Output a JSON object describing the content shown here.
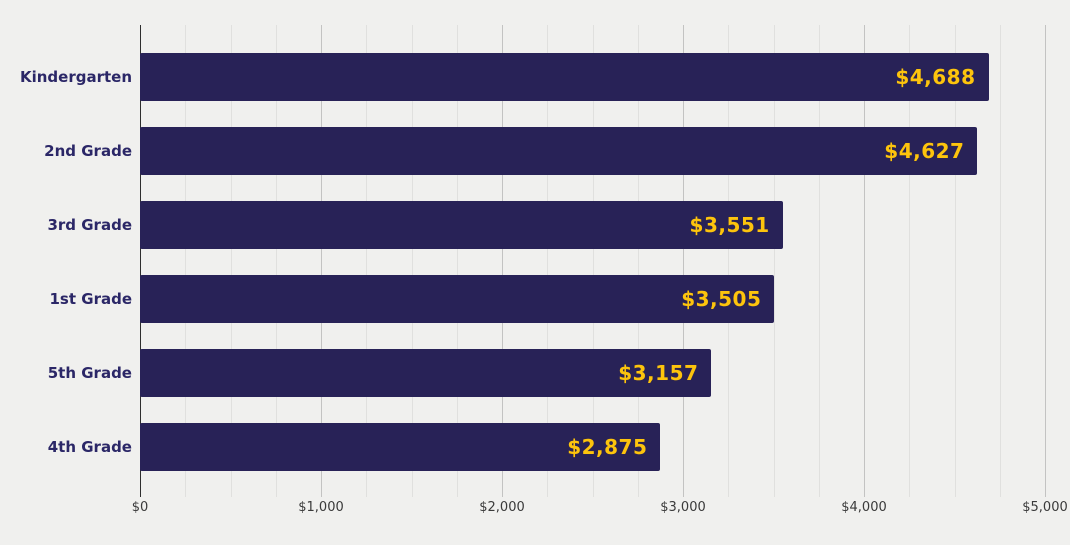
{
  "chart_data": {
    "type": "bar",
    "orientation": "horizontal",
    "title": "",
    "categories": [
      "Kindergarten",
      "2nd Grade",
      "3rd Grade",
      "1st Grade",
      "5th Grade",
      "4th Grade"
    ],
    "values": [
      4688,
      4627,
      3551,
      3505,
      3157,
      2875
    ],
    "value_labels": [
      "$4,688",
      "$4,627",
      "$3,551",
      "$3,505",
      "$3,157",
      "$2,875"
    ],
    "xlabel": "",
    "ylabel": "",
    "xlim": [
      0,
      5000
    ],
    "x_major_ticks": [
      0,
      1000,
      2000,
      3000,
      4000,
      5000
    ],
    "x_major_tick_labels": [
      "$0",
      "$1,000",
      "$2,000",
      "$3,000",
      "$4,000",
      "$5,000"
    ],
    "x_minor_tick_interval": 250,
    "grid": true,
    "legend": false,
    "colors": {
      "background": "#f0f0ee",
      "bar": "#282257",
      "value_label": "#fdc40d",
      "category_label": "#2b2767",
      "axis_line": "#2e2e2e",
      "major_gridline": "#c3c3c2",
      "minor_gridline": "#e0e0de",
      "tick_label": "#3a3a3a"
    }
  }
}
